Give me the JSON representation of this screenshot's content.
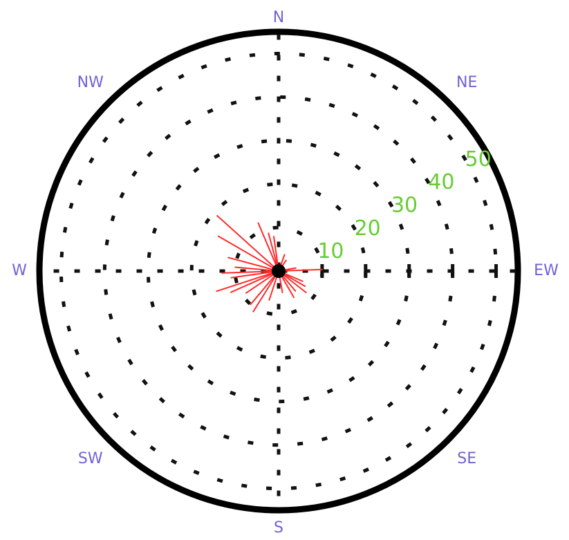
{
  "chart_data": {
    "type": "polar",
    "directions": [
      "N",
      "NE",
      "EW",
      "SE",
      "S",
      "SW",
      "W",
      "NW"
    ],
    "ring_labels": [
      "10",
      "20",
      "30",
      "40",
      "50"
    ],
    "rings": [
      10,
      20,
      30,
      40,
      50
    ],
    "r_range": [
      0,
      55
    ],
    "series": [
      {
        "values": [
          {
            "bearing": 312,
            "r": 19
          },
          {
            "bearing": 337,
            "r": 12
          },
          {
            "bearing": 345,
            "r": 9
          },
          {
            "bearing": 352,
            "r": 8
          },
          {
            "bearing": 300,
            "r": 16
          },
          {
            "bearing": 285,
            "r": 12
          },
          {
            "bearing": 275,
            "r": 10
          },
          {
            "bearing": 268,
            "r": 13
          },
          {
            "bearing": 262,
            "r": 11
          },
          {
            "bearing": 252,
            "r": 15
          },
          {
            "bearing": 246,
            "r": 12
          },
          {
            "bearing": 236,
            "r": 9
          },
          {
            "bearing": 220,
            "r": 10
          },
          {
            "bearing": 212,
            "r": 11
          },
          {
            "bearing": 198,
            "r": 7
          },
          {
            "bearing": 170,
            "r": 5
          },
          {
            "bearing": 150,
            "r": 7
          },
          {
            "bearing": 140,
            "r": 6
          },
          {
            "bearing": 128,
            "r": 8
          },
          {
            "bearing": 120,
            "r": 7
          },
          {
            "bearing": 113,
            "r": 6
          },
          {
            "bearing": 88,
            "r": 10
          },
          {
            "bearing": 80,
            "r": 4
          },
          {
            "bearing": 20,
            "r": 4
          },
          {
            "bearing": 35,
            "r": 3
          }
        ]
      }
    ]
  },
  "colors": {
    "direction_label": "#6f63d6",
    "ring_label": "#66cc33",
    "ray": "#ff2a2a",
    "grid": "#111111",
    "outer_ring": "#000000"
  }
}
